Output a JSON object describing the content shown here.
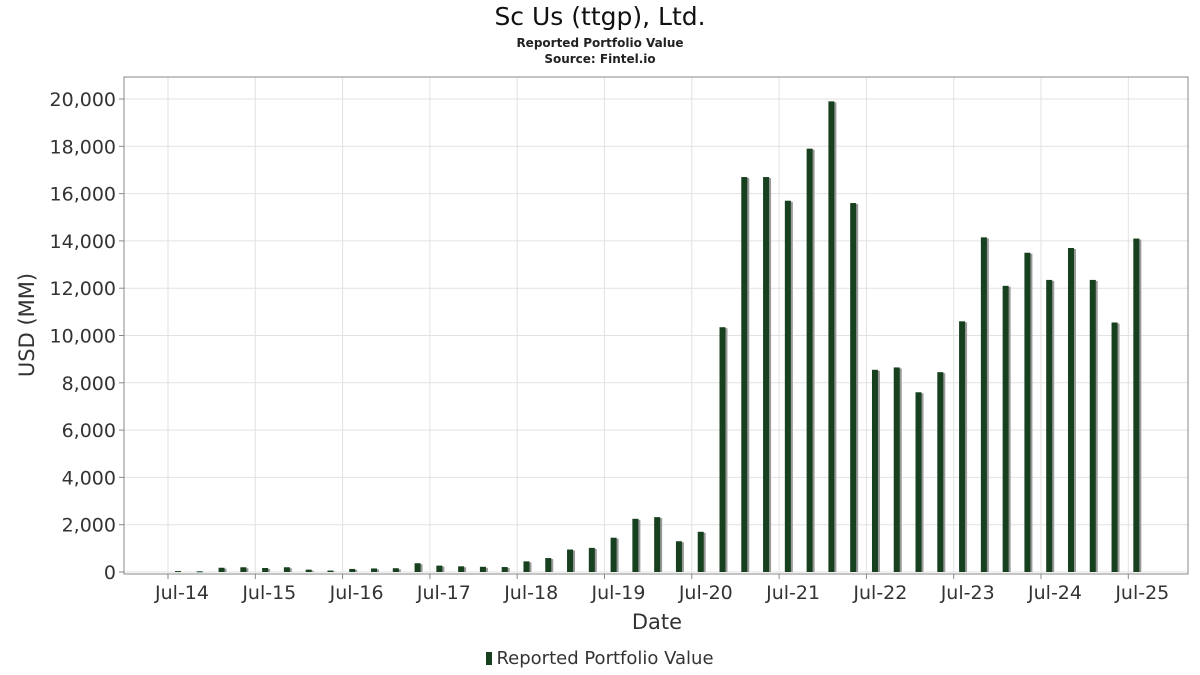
{
  "chart_data": {
    "type": "bar",
    "title": "Sc Us (ttgp), Ltd.",
    "subtitles": [
      "Reported Portfolio Value",
      "Source: Fintel.io"
    ],
    "xlabel": "Date",
    "ylabel": "USD (MM)",
    "ylim": [
      0,
      21000
    ],
    "yticks": [
      "0",
      "2,000",
      "4,000",
      "6,000",
      "8,000",
      "10,000",
      "12,000",
      "14,000",
      "16,000",
      "18,000",
      "20,000"
    ],
    "xticks": [
      "Jul-14",
      "Jul-15",
      "Jul-16",
      "Jul-17",
      "Jul-18",
      "Jul-19",
      "Jul-20",
      "Jul-21",
      "Jul-22",
      "Jul-23",
      "Jul-24",
      "Jul-25"
    ],
    "grid": true,
    "legend_position": "bottom",
    "series": [
      {
        "name": "Reported Portfolio Value",
        "color": "#17401f",
        "values": [
          40,
          30,
          180,
          200,
          170,
          200,
          100,
          60,
          130,
          150,
          160,
          370,
          270,
          240,
          220,
          210,
          450,
          590,
          950,
          1020,
          1450,
          2250,
          2320,
          1300,
          1700,
          10350,
          16700,
          16700,
          15700,
          17900,
          19900,
          15600,
          8550,
          8650,
          7600,
          8450,
          10600,
          14150,
          12100,
          13500,
          12350,
          13700,
          12350,
          10550,
          14100
        ]
      }
    ]
  }
}
